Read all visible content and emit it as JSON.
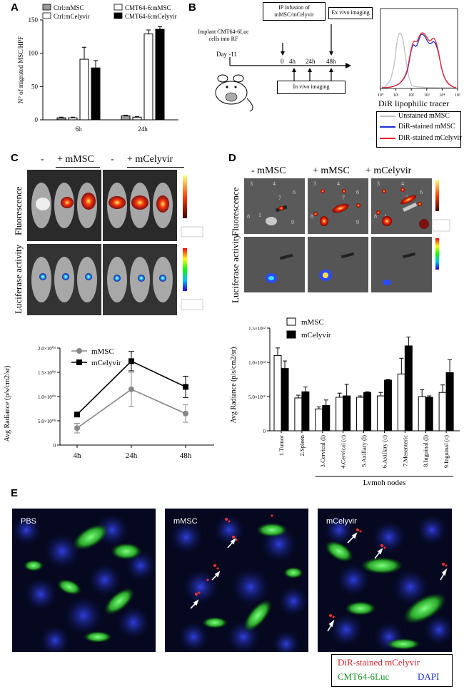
{
  "panels": {
    "A": "A",
    "B": "B",
    "C": "C",
    "D": "D",
    "E": "E"
  },
  "chartA": {
    "chart_data": {
      "type": "bar",
      "categories": [
        "6h",
        "24h"
      ],
      "series": [
        {
          "name": "Ctrl:mMSC",
          "values": [
            3,
            6
          ],
          "color": "#9a9a9a"
        },
        {
          "name": "Ctrl:mCelyvir",
          "values": [
            3,
            4
          ],
          "color": "#ffffff"
        },
        {
          "name": "CMT64-6:mMSC",
          "values": [
            91,
            129
          ],
          "color": "#ffffff"
        },
        {
          "name": "CMT64-6:mCelyvir",
          "values": [
            78,
            136
          ],
          "color": "#000000"
        }
      ],
      "errors": [
        [
          1,
          1
        ],
        [
          1,
          1
        ],
        [
          18,
          6
        ],
        [
          11,
          4
        ]
      ],
      "ylabel": "N° of migrated MSC/HPF",
      "yticks": [
        "0",
        "50",
        "100",
        "150"
      ],
      "ylim": [
        0,
        150
      ]
    }
  },
  "timeline": {
    "implant": "Implant CMT64-6Luc cells into RF",
    "day": "Day -11",
    "ip": "IP infusion of mMSC/mCelyvir",
    "exvivo": "Ex vivo imaging",
    "invivo": "In vivo imaging",
    "t0": "0",
    "t4": "4h",
    "t24": "24h",
    "t48": "48h"
  },
  "histogram": {
    "xlabel": "DiR lipophilic tracer",
    "ticks": [
      "10⁰",
      "10¹",
      "10²",
      "10³",
      "10⁴",
      "10⁵"
    ],
    "legend": [
      "Unstained mMSC",
      "DiR-stained mMSC",
      "DiR-stained mCelyvir"
    ],
    "colors": [
      "#c0c0c0",
      "#1a2fd6",
      "#e8232a"
    ]
  },
  "panelC": {
    "col_minus": "-",
    "col_mmsc": "+ mMSC",
    "col_minus2": "-",
    "col_mcel": "+ mCelyvir",
    "row1": "Fluorescence",
    "row2": "Luciferase activity",
    "chart_data": {
      "type": "line",
      "x": [
        "4h",
        "24h",
        "48h"
      ],
      "series": [
        {
          "name": "mMSC",
          "values": [
            350000000.0,
            1150000000.0,
            650000000.0
          ],
          "errors": [
            100000000.0,
            350000000.0,
            180000000.0
          ],
          "color": "#888888",
          "marker": "circle"
        },
        {
          "name": "mCelyvir",
          "values": [
            630000000.0,
            1730000000.0,
            1200000000.0
          ],
          "errors": [
            20000000.0,
            200000000.0,
            220000000.0
          ],
          "color": "#000000",
          "marker": "square"
        }
      ],
      "ylabel": "Avg Radiance (p/s/cm2/sr)",
      "yticks": [
        "0",
        "5.0×10⁰⁸",
        "1.0×10⁰⁹",
        "1.5×10⁰⁹",
        "2.0×10⁰⁹"
      ],
      "ylim": [
        0,
        2000000000.0
      ]
    }
  },
  "panelD": {
    "col1": "- mMSC",
    "col2": "+ mMSC",
    "col3": "+ mCelyvir",
    "row1": "Fluorescence",
    "row2": "Luciferase activity",
    "chart_data": {
      "type": "bar",
      "categories": [
        "1.Tumor",
        "2.Spleen",
        "3.Cervical (l)",
        "4.Cervical (c)",
        "5.Axillary (l)",
        "6.Axillary (c)",
        "7.Mesenteric",
        "8.Inguinal (l)",
        "9.Inguinal (c)"
      ],
      "series": [
        {
          "name": "mMSC",
          "values": [
            1100000000000.0,
            480000000000.0,
            320000000000.0,
            490000000000.0,
            490000000000.0,
            510000000000.0,
            830000000000.0,
            500000000000.0,
            560000000000.0
          ],
          "errors": [
            110000000000.0,
            40000000000.0,
            30000000000.0,
            60000000000.0,
            20000000000.0,
            50000000000.0,
            230000000000.0,
            100000000000.0,
            110000000000.0
          ],
          "color": "#ffffff"
        },
        {
          "name": "mCelyvir",
          "values": [
            910000000000.0,
            570000000000.0,
            370000000000.0,
            510000000000.0,
            560000000000.0,
            740000000000.0,
            1240000000000.0,
            490000000000.0,
            850000000000.0
          ],
          "errors": [
            110000000000.0,
            70000000000.0,
            80000000000.0,
            170000000000.0,
            10000000000.0,
            10000000000.0,
            130000000000.0,
            20000000000.0,
            190000000000.0
          ],
          "color": "#000000"
        }
      ],
      "ylabel": "Avg Radiance (p/s/cm2/sr)",
      "yticks": [
        "0",
        "5.0×10¹¹",
        "1.0×10¹²",
        "1.5×10¹²"
      ],
      "ylim": [
        0,
        1500000000000.0
      ],
      "xgroup": "Lymph nodes"
    }
  },
  "panelE": {
    "labels": [
      "PBS",
      "mMSC",
      "mCelyvir"
    ],
    "legend_red": "DiR-stained mCelyvir",
    "legend_green": "CMT64-6Luc",
    "legend_blue": "DAPI"
  }
}
